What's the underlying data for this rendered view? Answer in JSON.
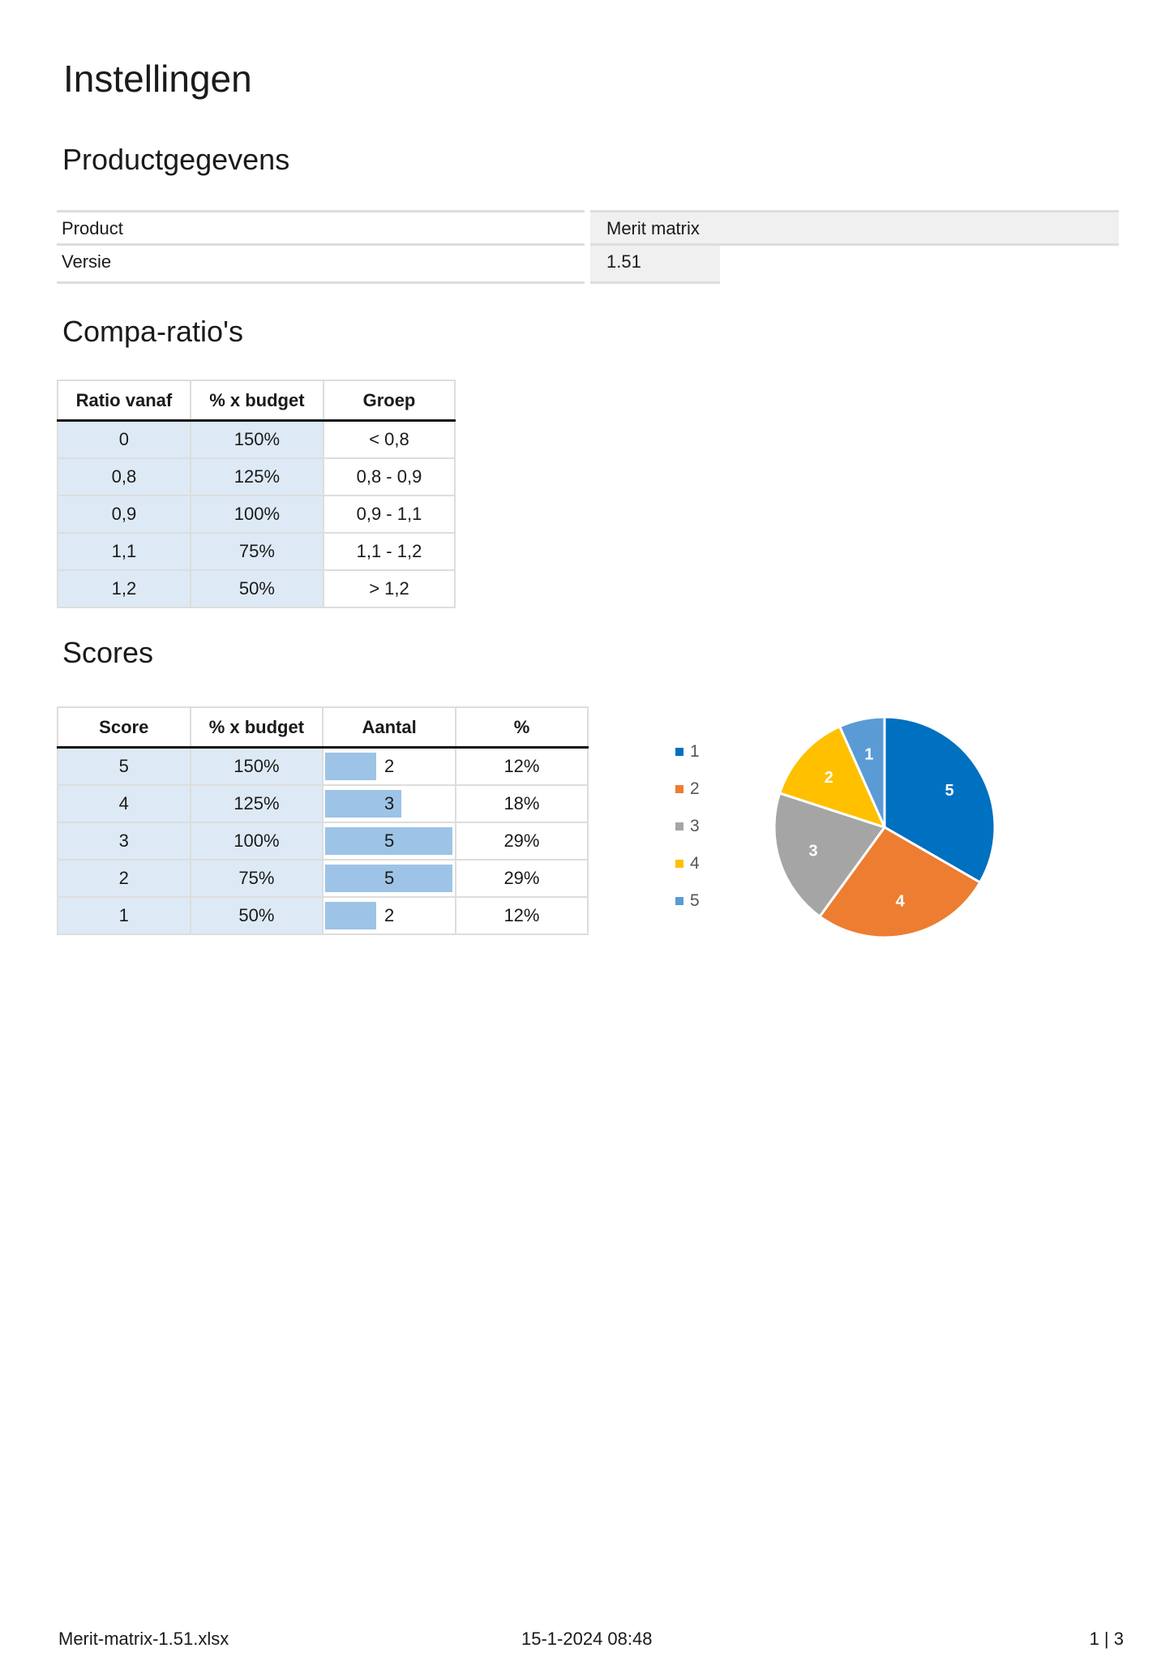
{
  "title": "Instellingen",
  "product_section": {
    "heading": "Productgegevens",
    "rows": [
      {
        "label": "Product",
        "value": "Merit matrix"
      },
      {
        "label": "Versie",
        "value": "1.51"
      }
    ]
  },
  "compa_section": {
    "heading": "Compa-ratio's",
    "headers": [
      "Ratio vanaf",
      "% x budget",
      "Groep"
    ],
    "rows": [
      [
        "0",
        "150%",
        "< 0,8"
      ],
      [
        "0,8",
        "125%",
        "0,8 - 0,9"
      ],
      [
        "0,9",
        "100%",
        "0,9 - 1,1"
      ],
      [
        "1,1",
        "75%",
        "1,1 - 1,2"
      ],
      [
        "1,2",
        "50%",
        "> 1,2"
      ]
    ]
  },
  "scores_section": {
    "heading": "Scores",
    "headers": [
      "Score",
      "% x budget",
      "Aantal",
      "%"
    ],
    "rows": [
      [
        "5",
        "150%",
        "2",
        "12%"
      ],
      [
        "4",
        "125%",
        "3",
        "18%"
      ],
      [
        "3",
        "100%",
        "5",
        "29%"
      ],
      [
        "2",
        "75%",
        "5",
        "29%"
      ],
      [
        "1",
        "50%",
        "2",
        "12%"
      ]
    ],
    "bar_max": 5,
    "bar_color": "#9dc3e6"
  },
  "chart_data": {
    "type": "pie",
    "categories": [
      "1",
      "2",
      "3",
      "4",
      "5"
    ],
    "values": [
      5,
      4,
      3,
      2,
      1
    ],
    "data_labels": [
      "5",
      "4",
      "3",
      "2",
      "1"
    ],
    "colors": [
      "#0070c0",
      "#ed7d31",
      "#a5a5a5",
      "#ffc000",
      "#5b9bd5"
    ],
    "legend": "left"
  },
  "footer": {
    "filename": "Merit-matrix-1.51.xlsx",
    "datetime": "15-1-2024 08:48",
    "page": "1 | 3"
  }
}
